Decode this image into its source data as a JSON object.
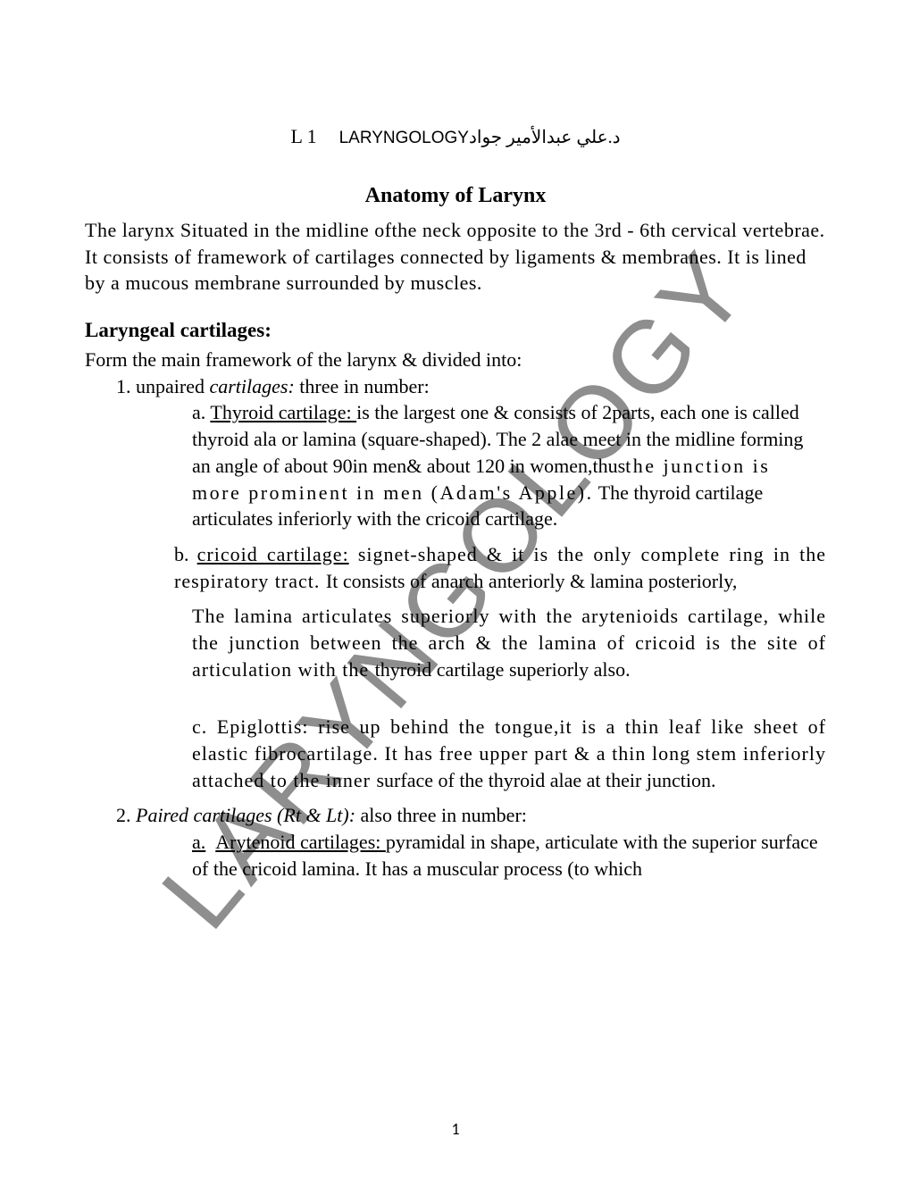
{
  "watermark": "LARYNGOLOGY",
  "header": {
    "left": "L 1",
    "caps": "LARYNGOLOGY",
    "arabic": "د.علي عبدالأمير جواد"
  },
  "title": "Anatomy of Larynx",
  "intro": "The larynx Situated in the midline ofthe neck opposite to the 3rd - 6th cervical vertebrae. It consists of framework of cartilages connected by ligaments & membranes. It is lined by a mucous membrane surrounded by muscles.",
  "section1_heading": "Laryngeal cartilages:",
  "section1_intro": "Form  the main framework of the larynx & divided into:",
  "item1_label": "1. unpaired ",
  "item1_italic": "cartilages:",
  "item1_rest": " three in number:",
  "item_a_label": "a. ",
  "item_a_underline": "Thyroid cartilage: ",
  "item_a_text1": "is the largest one & consists of 2parts, each one is called  thyroid ala or lamina (square-shaped). The 2 alae meet in the midline forming an angle of about 90in men& about 120 in women,thus",
  "item_a_text2": "the junction is more prominent in men (Adam's Apple).",
  "item_a_text3": " The thyroid cartilage articulates inferiorly with the cricoid cartilage.",
  "item_b_label": "b. ",
  "item_b_underline": "cricoid cartilage:",
  "item_b_text1": " signet-shaped & it is the only complete ring in the respiratory tract. ",
  "item_b_text2": "It consists of anarch anteriorly & lamina posteriorly,",
  "item_b_text3": "The lamina articulates superiorly with the arytenioids cartilage, while the junction between the arch & the lamina of cricoid is the site of articulation with the ",
  "item_b_text4": "thyroid cartilage superiorly also.",
  "item_c_text": "c. Epiglottis: rise up behind the tongue,it is a thin leaf like sheet of elastic fibrocartilage. It has free upper part & a thin long stem inferiorly attached to the inner ",
  "item_c_text2": "surface of the thyroid alae at their junction.",
  "item2_label": "2. ",
  "item2_italic": "Paired cartilages (Rt & Lt):",
  "item2_rest": " also three in number:",
  "item2a_label": "a.",
  "item2a_underline": "Arytenoid cartilages: ",
  "item2a_text": "pyramidal in shape, articulate with the superior surface of the cricoid lamina. It has a muscular process (to which",
  "page_number": "1",
  "colors": {
    "text": "#000000",
    "background": "#ffffff",
    "watermark": "#5a5a5a"
  }
}
